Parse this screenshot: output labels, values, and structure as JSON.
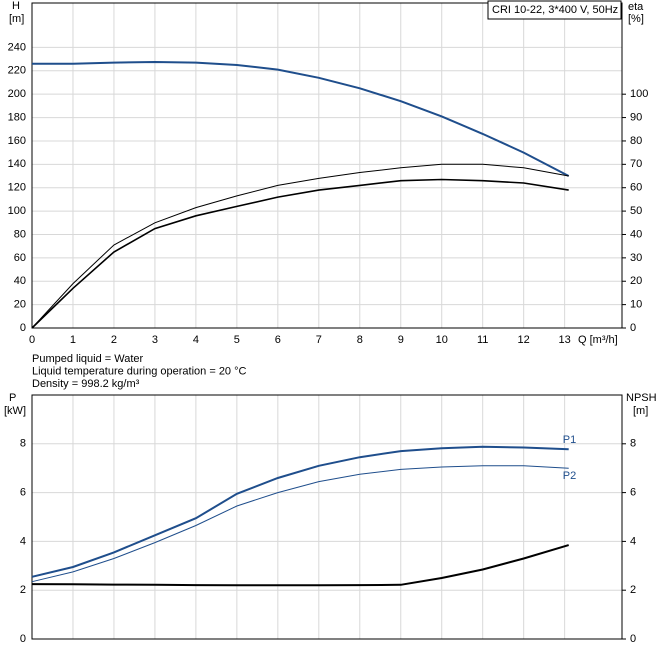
{
  "chart_data": [
    {
      "type": "line",
      "annotation": "CRI 10-22, 3*400 V, 50Hz",
      "ylabel": "H",
      "yunit": "[m]",
      "y2label": "eta",
      "y2unit": "[%]",
      "xlabel": "Q [m³/h]",
      "x": [
        0,
        1,
        2,
        3,
        4,
        5,
        6,
        7,
        8,
        9,
        10,
        11,
        12,
        13.1
      ],
      "xlim": [
        0,
        14.4
      ],
      "xticks": [
        0,
        1,
        2,
        3,
        4,
        5,
        6,
        7,
        8,
        9,
        10,
        11,
        12,
        13
      ],
      "ylim": [
        0,
        278
      ],
      "yticks": [
        0,
        20,
        40,
        60,
        80,
        100,
        120,
        140,
        160,
        180,
        200,
        220,
        240
      ],
      "y2lim": [
        0,
        139
      ],
      "y2ticks": [
        0,
        10,
        20,
        30,
        40,
        50,
        60,
        70,
        80,
        90,
        100
      ],
      "grid": true,
      "series": [
        {
          "color": "#1f4e8c",
          "values": [
            226,
            226,
            227,
            227.5,
            227,
            225,
            221,
            214,
            205,
            194,
            181,
            166,
            150,
            130
          ]
        },
        {
          "color": "#000000",
          "axis": "y2",
          "values": [
            0,
            19,
            35.5,
            45,
            51.5,
            56.5,
            61,
            64,
            66.5,
            68.5,
            70,
            70,
            68.5,
            65
          ]
        },
        {
          "color": "#000000",
          "axis": "y2",
          "values": [
            0,
            17,
            32.5,
            42.5,
            48,
            52,
            56,
            59,
            61,
            63,
            63.5,
            63,
            62,
            59
          ]
        }
      ]
    },
    {
      "type": "line",
      "annotations": [
        "Pumped liquid = Water",
        "Liquid temperature during operation = 20 °C",
        "Density = 998.2 kg/m³"
      ],
      "ylabel": "P",
      "yunit": "[kW]",
      "y2label": "NPSH",
      "y2unit": "[m]",
      "x": [
        0,
        1,
        2,
        3,
        4,
        5,
        6,
        7,
        8,
        9,
        10,
        11,
        12,
        13.1
      ],
      "xlim": [
        0,
        14.4
      ],
      "ylim": [
        0,
        10
      ],
      "yticks": [
        0,
        2,
        4,
        6,
        8
      ],
      "y2lim": [
        0,
        10
      ],
      "y2ticks": [
        0,
        2,
        4,
        6,
        8
      ],
      "grid": true,
      "series": [
        {
          "name": "P1",
          "color": "#1f4e8c",
          "values": [
            2.55,
            2.95,
            3.55,
            4.25,
            4.95,
            5.95,
            6.6,
            7.1,
            7.45,
            7.7,
            7.82,
            7.88,
            7.85,
            7.78
          ]
        },
        {
          "name": "P2",
          "color": "#1f4e8c",
          "values": [
            2.35,
            2.75,
            3.3,
            3.95,
            4.65,
            5.45,
            6.0,
            6.45,
            6.75,
            6.95,
            7.05,
            7.1,
            7.1,
            7.0
          ]
        },
        {
          "color": "#000000",
          "axis": "y2",
          "values": [
            2.25,
            2.24,
            2.23,
            2.22,
            2.21,
            2.2,
            2.2,
            2.2,
            2.21,
            2.22,
            2.5,
            2.85,
            3.3,
            3.85
          ]
        }
      ]
    }
  ]
}
